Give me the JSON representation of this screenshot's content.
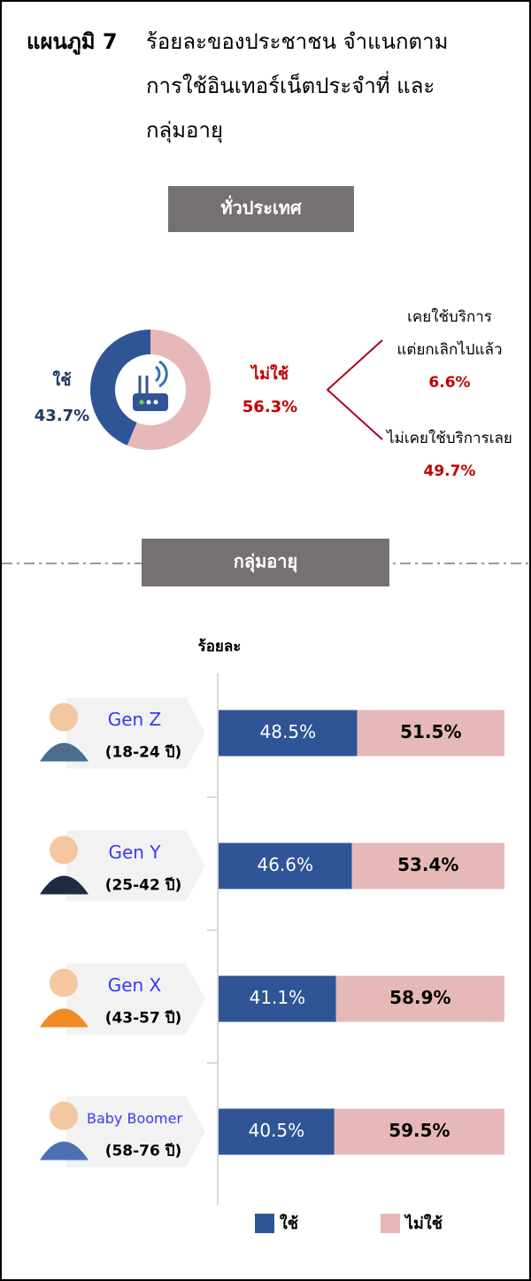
{
  "header": {
    "label": "แผนภูมิ 7",
    "title_lines": [
      "ร้อยละของประชาชน  จำแนกตาม",
      "การใช้อินเทอร์เน็ตประจำที่ และ",
      "กลุ่มอายุ"
    ]
  },
  "chart_data": [
    {
      "type": "pie",
      "donut": true,
      "heading": "ทั่วประเทศ",
      "categories": [
        "ใช้",
        "ไม่ใช้"
      ],
      "values": [
        43.7,
        56.3
      ],
      "value_labels": [
        "43.7%",
        "56.3%"
      ],
      "colors": [
        "#2f5597",
        "#e6b9b8"
      ],
      "label_colors": [
        "#1f3864",
        "#c00000"
      ],
      "breakdown": {
        "categories": [
          [
            "เคยใช้บริการ",
            "แต่ยกเลิกไปแล้ว"
          ],
          [
            "ไม่เคยใช้บริการเลย"
          ]
        ],
        "values": [
          6.6,
          49.7
        ],
        "value_labels": [
          "6.6%",
          "49.7%"
        ],
        "color": "#c00000"
      }
    },
    {
      "type": "bar",
      "orientation": "horizontal",
      "stacked": true,
      "heading": "กลุ่มอายุ",
      "y_label": "ร้อยละ",
      "categories": [
        "Gen Z",
        "Gen Y",
        "Gen X",
        "Baby Boomer"
      ],
      "category_notes": [
        "(18-24 ปี)",
        "(25-42 ปี)",
        "(43-57 ปี)",
        "(58-76 ปี)"
      ],
      "xlim": [
        0,
        100
      ],
      "series": [
        {
          "name": "ใช้",
          "color": "#2f5597",
          "values": [
            48.5,
            46.6,
            41.1,
            40.5
          ],
          "value_labels": [
            "48.5%",
            "46.6%",
            "41.1%",
            "40.5%"
          ]
        },
        {
          "name": "ไม่ใช้",
          "color": "#e6b9b8",
          "values": [
            51.5,
            53.4,
            58.9,
            59.5
          ],
          "value_labels": [
            "51.5%",
            "53.4%",
            "58.9%",
            "59.5%"
          ]
        }
      ],
      "legend": "bottom"
    }
  ]
}
